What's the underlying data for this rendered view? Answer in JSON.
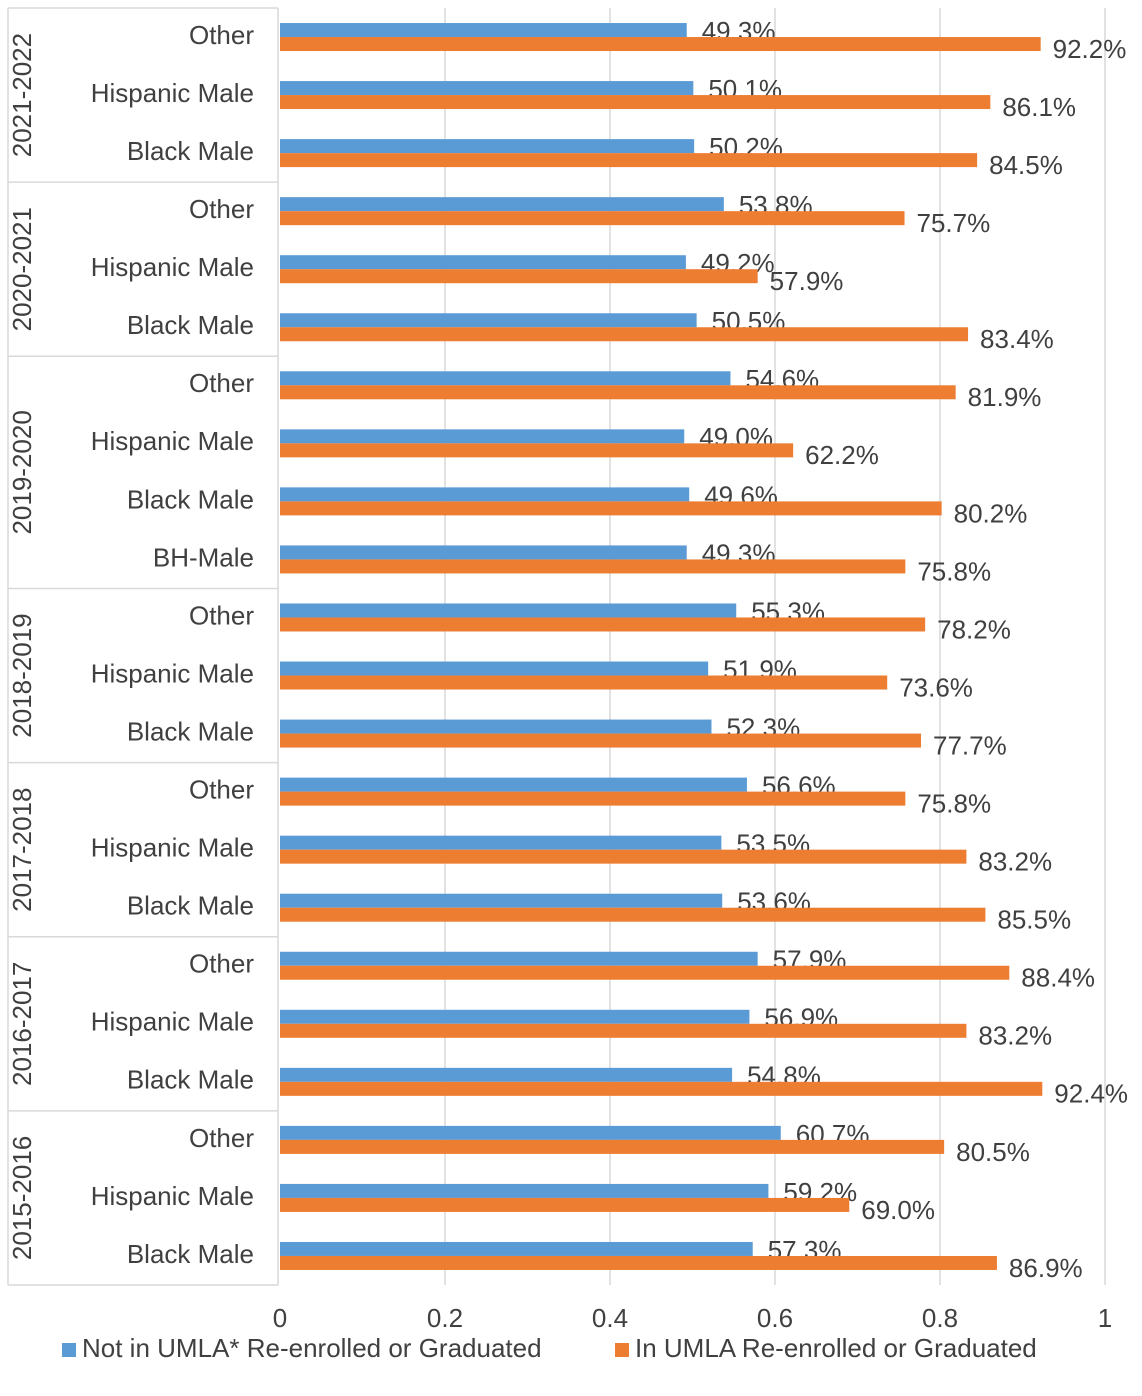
{
  "chart_data": {
    "type": "bar",
    "orientation": "horizontal",
    "groups": [
      {
        "name": "2021-2022",
        "categories": [
          "Other",
          "Hispanic Male",
          "Black Male"
        ]
      },
      {
        "name": "2020-2021",
        "categories": [
          "Other",
          "Hispanic Male",
          "Black Male"
        ]
      },
      {
        "name": "2019-2020",
        "categories": [
          "Other",
          "Hispanic Male",
          "Black Male",
          "BH-Male"
        ]
      },
      {
        "name": "2018-2019",
        "categories": [
          "Other",
          "Hispanic Male",
          "Black Male"
        ]
      },
      {
        "name": "2017-2018",
        "categories": [
          "Other",
          "Hispanic Male",
          "Black Male"
        ]
      },
      {
        "name": "2016-2017",
        "categories": [
          "Other",
          "Hispanic Male",
          "Black Male"
        ]
      },
      {
        "name": "2015-2016",
        "categories": [
          "Other",
          "Hispanic Male",
          "Black Male"
        ]
      }
    ],
    "series": [
      {
        "name": "Not in UMLA* Re-enrolled or Graduated",
        "color": "#5b9bd5",
        "values": [
          0.493,
          0.501,
          0.502,
          0.538,
          0.492,
          0.505,
          0.546,
          0.49,
          0.496,
          0.493,
          0.553,
          0.519,
          0.523,
          0.566,
          0.535,
          0.536,
          0.579,
          0.569,
          0.548,
          0.607,
          0.592,
          0.573
        ],
        "value_labels": [
          "49.3%",
          "50.1%",
          "50.2%",
          "53.8%",
          "49.2%",
          "50.5%",
          "54.6%",
          "49.0%",
          "49.6%",
          "49.3%",
          "55.3%",
          "51.9%",
          "52.3%",
          "56.6%",
          "53.5%",
          "53.6%",
          "57.9%",
          "56.9%",
          "54.8%",
          "60.7%",
          "59.2%",
          "57.3%"
        ]
      },
      {
        "name": "In UMLA Re-enrolled or Graduated",
        "color": "#ed7d31",
        "values": [
          0.922,
          0.861,
          0.845,
          0.757,
          0.579,
          0.834,
          0.819,
          0.622,
          0.802,
          0.758,
          0.782,
          0.736,
          0.777,
          0.758,
          0.832,
          0.855,
          0.884,
          0.832,
          0.924,
          0.805,
          0.69,
          0.869
        ],
        "value_labels": [
          "92.2%",
          "86.1%",
          "84.5%",
          "75.7%",
          "57.9%",
          "83.4%",
          "81.9%",
          "62.2%",
          "80.2%",
          "75.8%",
          "78.2%",
          "73.6%",
          "77.7%",
          "75.8%",
          "83.2%",
          "85.5%",
          "88.4%",
          "83.2%",
          "92.4%",
          "80.5%",
          "69.0%",
          "86.9%"
        ]
      }
    ],
    "xlim": [
      0,
      1
    ],
    "xticks": [
      0,
      0.2,
      0.4,
      0.6,
      0.8,
      1
    ],
    "grid": true,
    "legend": "bottom"
  }
}
